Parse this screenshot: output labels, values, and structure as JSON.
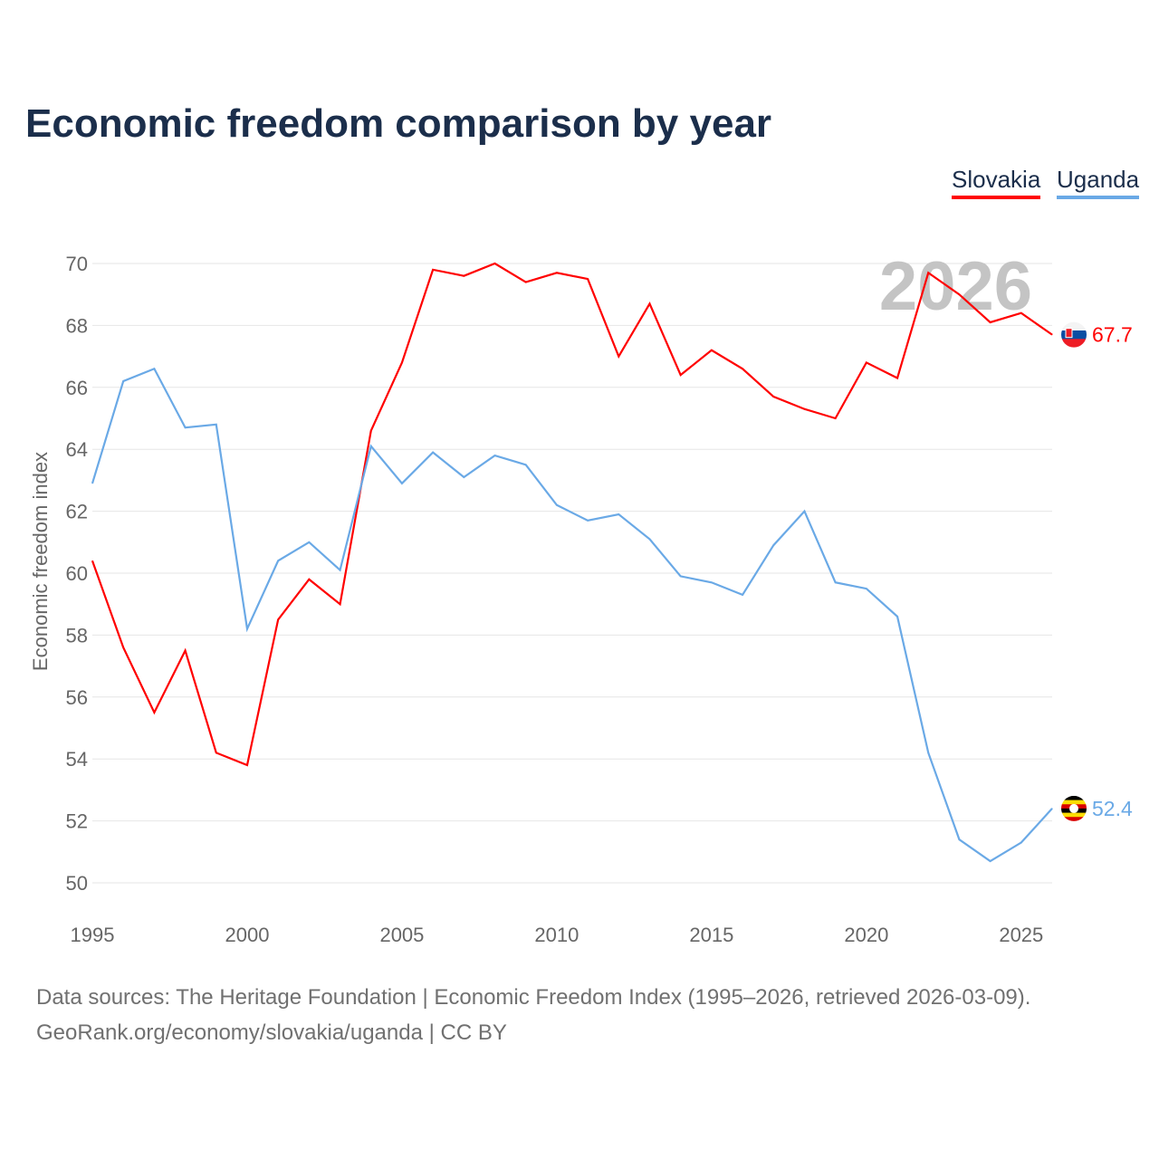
{
  "chart_data": {
    "type": "line",
    "title": "Economic freedom comparison by year",
    "xlabel": "",
    "ylabel": "Economic freedom index",
    "xlim": [
      1995,
      2026
    ],
    "ylim": [
      50,
      70
    ],
    "yticks": [
      "50",
      "52",
      "54",
      "56",
      "58",
      "60",
      "62",
      "64",
      "66",
      "68",
      "70"
    ],
    "xticks": [
      "1995",
      "2000",
      "2005",
      "2010",
      "2015",
      "2020",
      "2025"
    ],
    "grid": true,
    "legend_position": "top-right",
    "watermark_year": "2026",
    "x": [
      1995,
      1996,
      1997,
      1998,
      1999,
      2000,
      2001,
      2002,
      2003,
      2004,
      2005,
      2006,
      2007,
      2008,
      2009,
      2010,
      2011,
      2012,
      2013,
      2014,
      2015,
      2016,
      2017,
      2018,
      2019,
      2020,
      2021,
      2022,
      2023,
      2024,
      2025,
      2026
    ],
    "series": [
      {
        "name": "Slovakia",
        "color": "#ff0000",
        "end_label": "67.7",
        "values": [
          60.4,
          57.6,
          55.5,
          57.5,
          54.2,
          53.8,
          58.5,
          59.8,
          59.0,
          64.6,
          66.8,
          69.8,
          69.6,
          70.0,
          69.4,
          69.7,
          69.5,
          67.0,
          68.7,
          66.4,
          67.2,
          66.6,
          65.7,
          65.3,
          65.0,
          66.8,
          66.3,
          69.7,
          69.0,
          68.1,
          68.4,
          67.7
        ]
      },
      {
        "name": "Uganda",
        "color": "#6aa9e6",
        "end_label": "52.4",
        "values": [
          62.9,
          66.2,
          66.6,
          64.7,
          64.8,
          58.2,
          60.4,
          61.0,
          60.1,
          64.1,
          62.9,
          63.9,
          63.1,
          63.8,
          63.5,
          62.2,
          61.7,
          61.9,
          61.1,
          59.9,
          59.7,
          59.3,
          60.9,
          62.0,
          59.7,
          59.5,
          58.6,
          54.2,
          51.4,
          50.7,
          51.3,
          52.4
        ]
      }
    ]
  },
  "footer": {
    "line1": "Data sources: The Heritage Foundation | Economic Freedom Index (1995–2026, retrieved 2026-03-09).",
    "line2": "GeoRank.org/economy/slovakia/uganda | CC BY"
  }
}
